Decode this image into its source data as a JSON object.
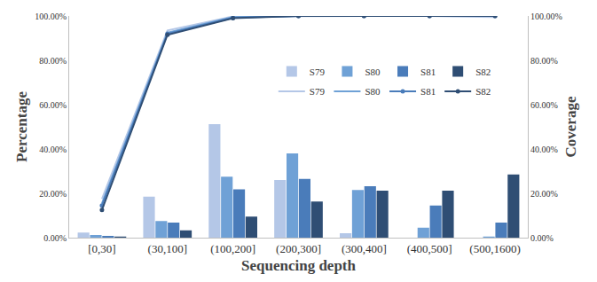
{
  "chart_data": {
    "type": "bar",
    "x_label": "Sequencing depth",
    "y_label": "Percentage",
    "y2_label": "Coverage",
    "categories": [
      "[0,30]",
      "(30,100]",
      "(100,200]",
      "(200,300]",
      "(300,400]",
      "(400,500]",
      "(500,1600)"
    ],
    "ylim": [
      0,
      100
    ],
    "yticks": [
      {
        "value": 0,
        "label": "0.00%"
      },
      {
        "value": 20,
        "label": "20.00%"
      },
      {
        "value": 40,
        "label": "40.00%"
      },
      {
        "value": 60,
        "label": "60.00%"
      },
      {
        "value": 80,
        "label": "80.00%"
      },
      {
        "value": 100,
        "label": "100.00%"
      }
    ],
    "y2lim": [
      0,
      100
    ],
    "y2ticks": [
      {
        "value": 0,
        "label": "0.00%"
      },
      {
        "value": 20,
        "label": "20.00%"
      },
      {
        "value": 40,
        "label": "40.00%"
      },
      {
        "value": 60,
        "label": "60.00%"
      },
      {
        "value": 80,
        "label": "80.00%"
      },
      {
        "value": 100,
        "label": "100.00%"
      }
    ],
    "grid": false,
    "legend": "center right",
    "series": [
      {
        "name": "S79",
        "type": "bar",
        "color": "#b4c7e7",
        "values": [
          2.3,
          18.5,
          51.2,
          26.0,
          2.0,
          0,
          0
        ]
      },
      {
        "name": "S80",
        "type": "bar",
        "color": "#6fa1d6",
        "values": [
          1.2,
          7.5,
          27.5,
          38.0,
          21.5,
          4.5,
          0.5
        ]
      },
      {
        "name": "S81",
        "type": "bar",
        "color": "#4a7cba",
        "values": [
          0.8,
          6.8,
          21.8,
          26.5,
          23.2,
          14.5,
          6.8
        ]
      },
      {
        "name": "S82",
        "type": "bar",
        "color": "#2f4e74",
        "values": [
          0.5,
          3.3,
          9.5,
          16.3,
          21.2,
          21.2,
          28.5
        ]
      },
      {
        "name": "S79",
        "type": "line",
        "axis": "y2",
        "color": "#b4c7e7",
        "values": [
          17.5,
          93.5,
          99.8,
          100,
          100,
          100,
          99.5
        ]
      },
      {
        "name": "S80",
        "type": "line",
        "axis": "y2",
        "color": "#6fa1d6",
        "values": [
          15.5,
          92.5,
          99.5,
          100,
          100,
          100,
          100
        ]
      },
      {
        "name": "S81",
        "type": "line",
        "axis": "y2",
        "color": "#4a7cba",
        "marker": "circle",
        "values": [
          14.5,
          92.0,
          99.2,
          100,
          100,
          100,
          100
        ]
      },
      {
        "name": "S82",
        "type": "line",
        "axis": "y2",
        "color": "#2f4e74",
        "marker": "circle",
        "values": [
          12.5,
          91.5,
          99.0,
          100,
          100,
          100,
          100
        ]
      }
    ]
  }
}
